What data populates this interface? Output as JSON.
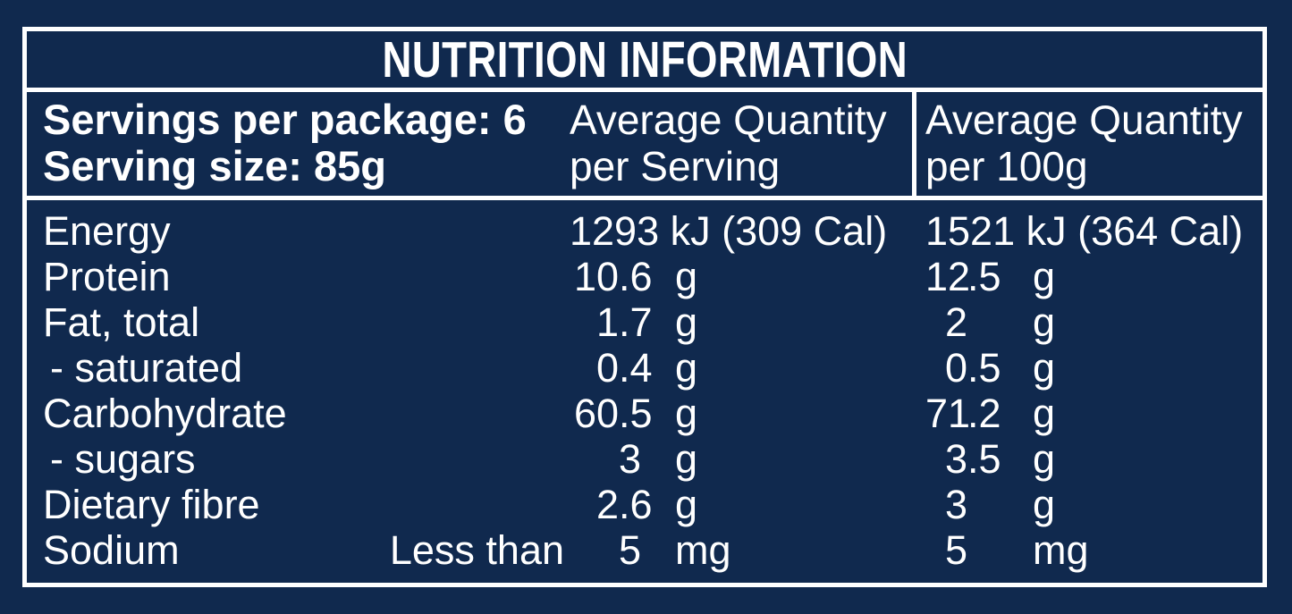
{
  "panel": {
    "title": "NUTRITION INFORMATION",
    "colors": {
      "background": "#10294e",
      "border": "#ffffff",
      "text": "#ffffff"
    },
    "header": {
      "servings_per_package": "Servings per package: 6",
      "serving_size": "Serving size: 85g",
      "col_serving": {
        "line1": "Average Quantity",
        "line2": "per Serving"
      },
      "col_100g": {
        "line1": "Average Quantity",
        "line2": "per 100g"
      }
    },
    "rows": [
      {
        "label": "Energy",
        "indent": false,
        "qualifier": "",
        "energy": true,
        "serving": {
          "value": "1293 kJ (309 Cal)",
          "unit": ""
        },
        "per100g": {
          "value": "1521 kJ (364 Cal)",
          "unit": ""
        }
      },
      {
        "label": "Protein",
        "indent": false,
        "qualifier": "",
        "serving": {
          "value": "10.6",
          "unit": "g"
        },
        "per100g": {
          "value": "12.5",
          "unit": "g"
        }
      },
      {
        "label": "Fat, total",
        "indent": false,
        "qualifier": "",
        "serving": {
          "value": "1.7",
          "unit": "g"
        },
        "per100g": {
          "value": "2",
          "unit": "g"
        }
      },
      {
        "label": "- saturated",
        "indent": true,
        "qualifier": "",
        "serving": {
          "value": "0.4",
          "unit": "g"
        },
        "per100g": {
          "value": "0.5",
          "unit": "g"
        }
      },
      {
        "label": "Carbohydrate",
        "indent": false,
        "qualifier": "",
        "serving": {
          "value": "60.5",
          "unit": "g"
        },
        "per100g": {
          "value": "71.2",
          "unit": "g"
        }
      },
      {
        "label": "- sugars",
        "indent": true,
        "qualifier": "",
        "serving": {
          "value": "3",
          "unit": "g"
        },
        "per100g": {
          "value": "3.5",
          "unit": "g"
        }
      },
      {
        "label": "Dietary fibre",
        "indent": false,
        "qualifier": "",
        "serving": {
          "value": "2.6",
          "unit": "g"
        },
        "per100g": {
          "value": "3",
          "unit": "g"
        }
      },
      {
        "label": "Sodium",
        "indent": false,
        "qualifier": "Less than",
        "serving": {
          "value": "5",
          "unit": "mg"
        },
        "per100g": {
          "value": "5",
          "unit": "mg"
        }
      }
    ]
  }
}
